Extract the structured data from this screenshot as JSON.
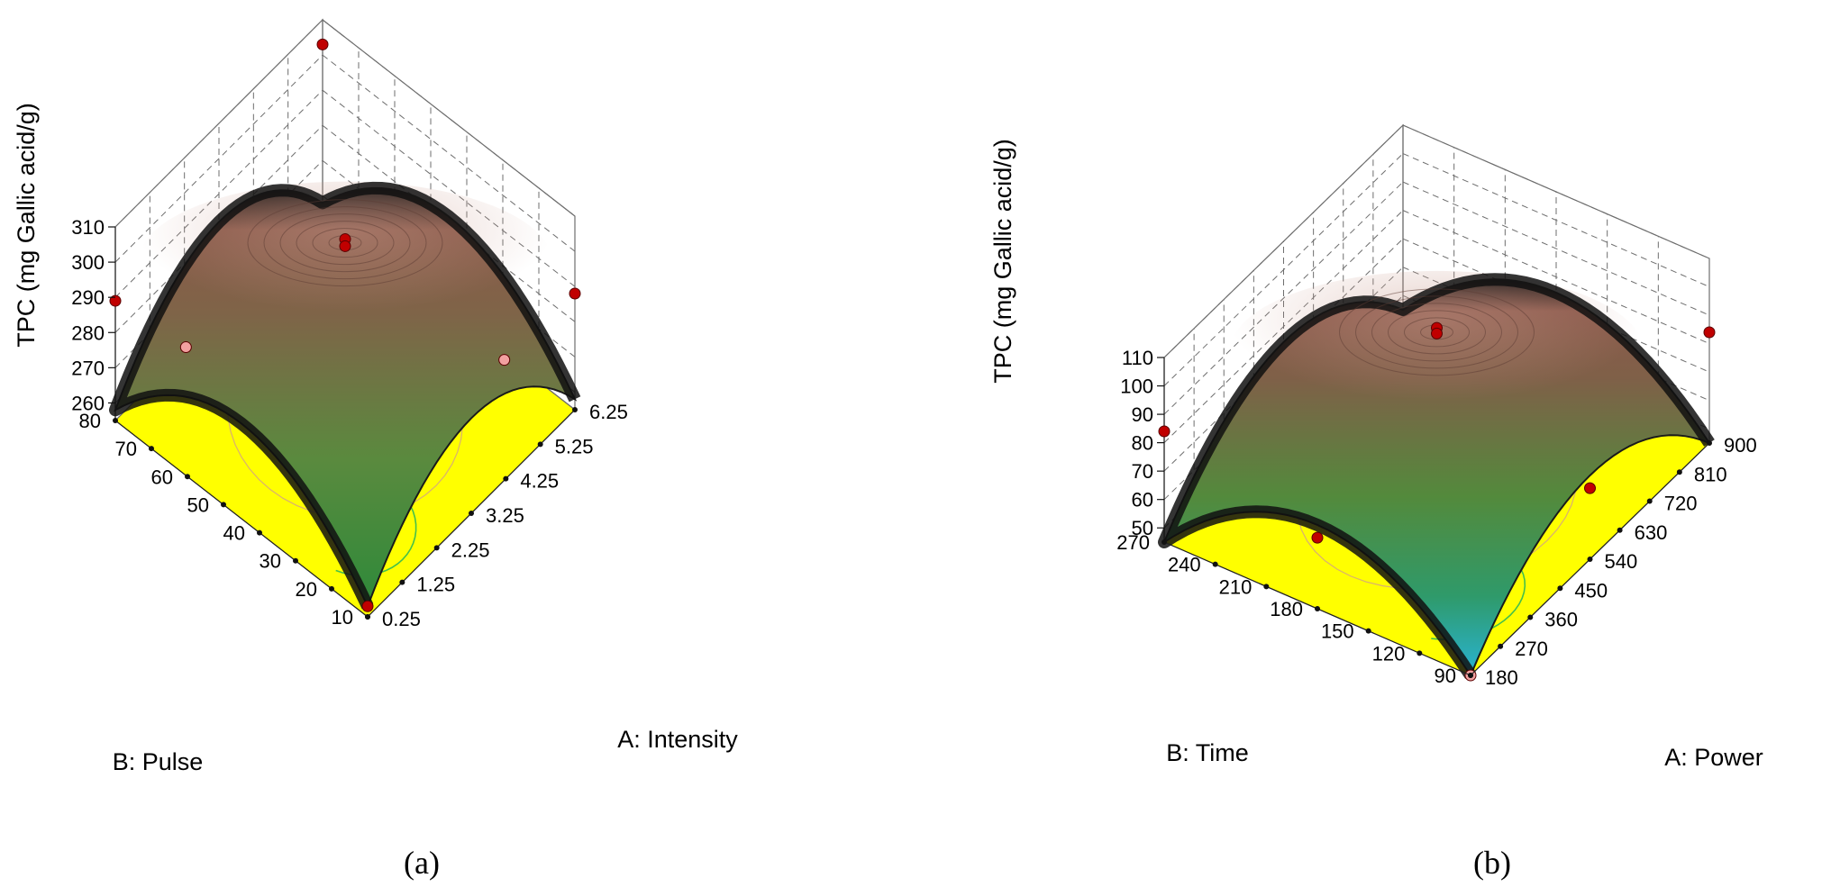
{
  "colors": {
    "floor": "#ffff00",
    "grid": "#6e6e6e",
    "surface_low": "#22a7c9",
    "surface_mid": "#4f8a3a",
    "surface_high": "#8c5a48",
    "surface_ridge": "#111111",
    "point_above": "#c00000",
    "point_below": "#f2a0a0"
  },
  "chart_data": [
    {
      "type": "surface",
      "panel_label": "(a)",
      "zlabel": "TPC (mg Gallic acid/g)",
      "xlabel": "A: Intensity",
      "ylabel": "B: Pulse",
      "x_ticks": [
        "0.25",
        "1.25",
        "2.25",
        "3.25",
        "4.25",
        "5.25",
        "6.25"
      ],
      "y_ticks": [
        "10",
        "20",
        "30",
        "40",
        "50",
        "60",
        "70",
        "80"
      ],
      "z_ticks": [
        "260",
        "270",
        "280",
        "290",
        "300",
        "310"
      ],
      "xlim": [
        0.25,
        6.25
      ],
      "ylim": [
        10,
        80
      ],
      "zlim": [
        255,
        310
      ],
      "surface": {
        "min": 258,
        "max": 306,
        "center_x": 3.25,
        "center_y": 45
      },
      "design_points": [
        {
          "x": 0.25,
          "y": 10,
          "z": 258,
          "side": "above"
        },
        {
          "x": 3.25,
          "y": 45,
          "z": 305,
          "side": "above"
        },
        {
          "x": 3.25,
          "y": 45,
          "z": 303,
          "side": "above"
        },
        {
          "x": 6.25,
          "y": 80,
          "z": 303,
          "side": "above"
        },
        {
          "x": 0.25,
          "y": 80,
          "z": 289,
          "side": "above"
        },
        {
          "x": 6.25,
          "y": 10,
          "z": 288,
          "side": "above"
        },
        {
          "x": 1.25,
          "y": 70,
          "z": 274,
          "side": "below"
        },
        {
          "x": 5.25,
          "y": 20,
          "z": 271,
          "side": "below"
        }
      ]
    },
    {
      "type": "surface",
      "panel_label": "(b)",
      "zlabel": "TPC (mg Gallic acid/g)",
      "xlabel": "A: Power",
      "ylabel": "B: Time",
      "x_ticks": [
        "180",
        "270",
        "360",
        "450",
        "540",
        "630",
        "720",
        "810",
        "900"
      ],
      "y_ticks": [
        "90",
        "120",
        "150",
        "180",
        "210",
        "240",
        "270"
      ],
      "z_ticks": [
        "50",
        "60",
        "70",
        "80",
        "90",
        "100",
        "110"
      ],
      "xlim": [
        180,
        900
      ],
      "ylim": [
        90,
        270
      ],
      "zlim": [
        45,
        110
      ],
      "surface": {
        "min": 45,
        "max": 104,
        "center_x": 540,
        "center_y": 180
      },
      "design_points": [
        {
          "x": 180,
          "y": 90,
          "z": 45,
          "side": "below"
        },
        {
          "x": 540,
          "y": 180,
          "z": 103,
          "side": "above"
        },
        {
          "x": 540,
          "y": 180,
          "z": 101,
          "side": "above"
        },
        {
          "x": 180,
          "y": 270,
          "z": 84,
          "side": "above"
        },
        {
          "x": 900,
          "y": 90,
          "z": 84,
          "side": "above"
        },
        {
          "x": 180,
          "y": 180,
          "z": 70,
          "side": "above"
        },
        {
          "x": 540,
          "y": 90,
          "z": 70,
          "side": "above"
        }
      ]
    }
  ]
}
